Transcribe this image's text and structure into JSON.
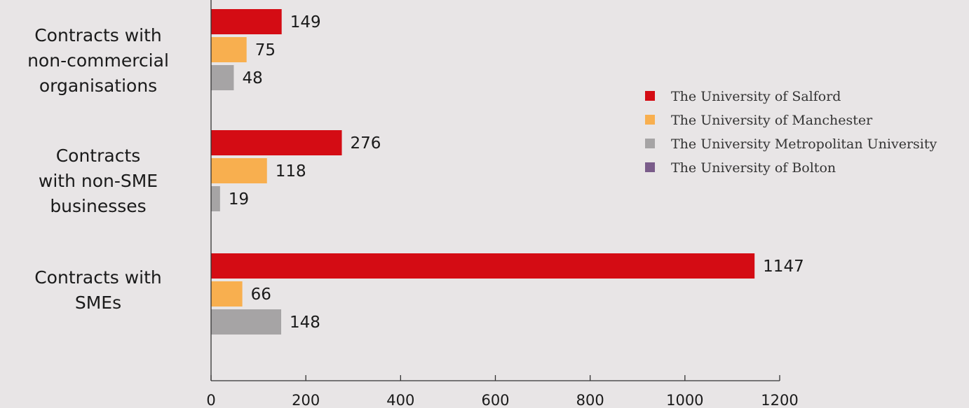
{
  "chart_data": {
    "type": "bar",
    "orientation": "horizontal",
    "categories": [
      [
        "Contracts with",
        "non-commercial",
        "organisations"
      ],
      [
        "Contracts",
        "with non-SME",
        "businesses"
      ],
      [
        "Contracts with",
        "SMEs"
      ]
    ],
    "series": [
      {
        "name": "The University of Salford",
        "color": "#d40c14",
        "values": [
          149,
          276,
          1147
        ]
      },
      {
        "name": "The University of Manchester",
        "color": "#f8af4f",
        "values": [
          75,
          118,
          66
        ]
      },
      {
        "name": "The University Metropolitan University",
        "color": "#a6a4a5",
        "values": [
          48,
          19,
          148
        ]
      },
      {
        "name": "The University of Bolton",
        "color": "#7a5c8a",
        "values": [
          null,
          null,
          null
        ]
      }
    ],
    "xlim": [
      0,
      1200
    ],
    "xticks": [
      0,
      200,
      400,
      600,
      800,
      1000,
      1200
    ],
    "title": "",
    "xlabel": "",
    "ylabel": "",
    "grid": false,
    "legend_position": "right"
  }
}
